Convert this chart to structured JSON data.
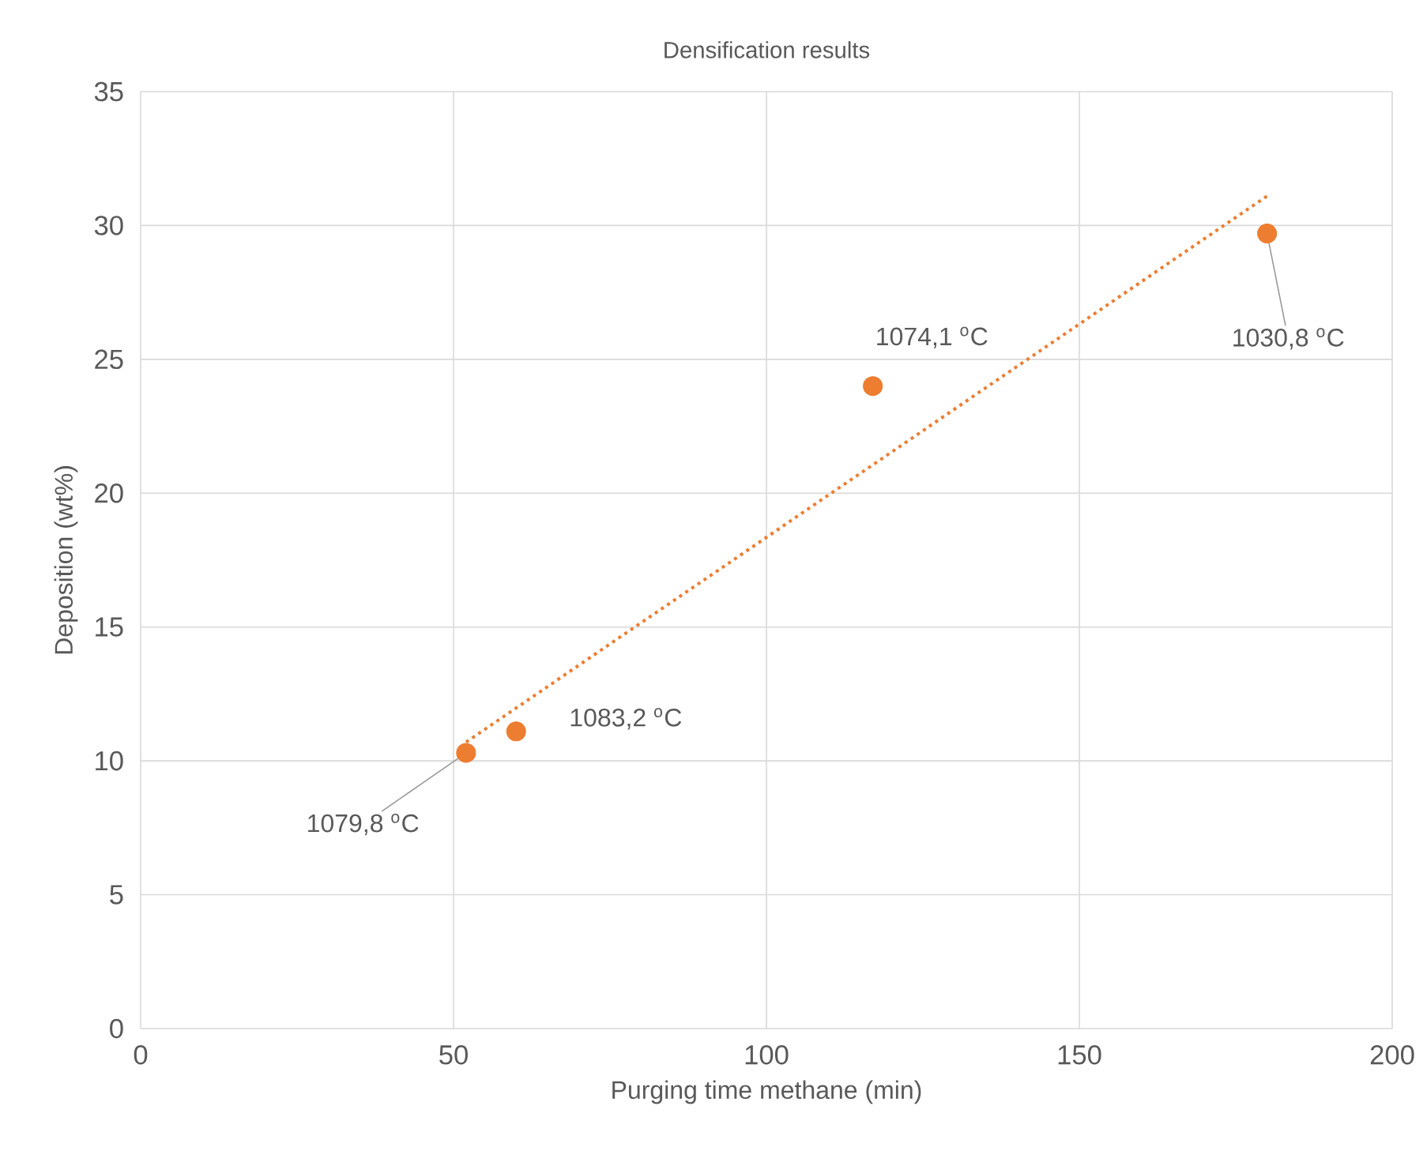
{
  "chart_data": {
    "type": "scatter",
    "title": "Densification results",
    "xlabel": "Purging time methane (min)",
    "ylabel": "Deposition (wt%)",
    "xlim": [
      0,
      200
    ],
    "ylim": [
      0,
      35
    ],
    "xticks": [
      0,
      50,
      100,
      150,
      200
    ],
    "yticks": [
      0,
      5,
      10,
      15,
      20,
      25,
      30,
      35
    ],
    "grid": true,
    "marker": "circle",
    "series": [
      {
        "color": "#ed7d31",
        "x": [
          52,
          60,
          117,
          180
        ],
        "values": [
          10.3,
          11.1,
          24.0,
          29.7
        ]
      },
      {
        "type": "line",
        "color": "#ed7d31",
        "line_style": "dotted",
        "marker": "none",
        "x": [
          52,
          180
        ],
        "values": [
          10.7,
          31.1
        ]
      }
    ],
    "annotations": [
      {
        "text": "1079,8 $^{o}$C",
        "x": 52,
        "y": 10.3
      },
      {
        "text": "1083,2 $^{o}$C",
        "x": 60,
        "y": 11.1
      },
      {
        "text": "1074,1 $^{o}$C",
        "x": 117,
        "y": 24.0
      },
      {
        "text": "1030,8 $^{o}$C",
        "x": 180,
        "y": 29.7
      }
    ]
  }
}
